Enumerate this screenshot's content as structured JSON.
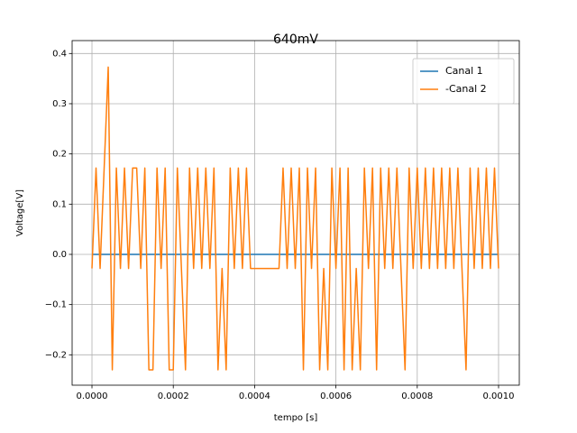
{
  "chart_data": {
    "type": "line",
    "title": "640mV",
    "xlabel": "tempo [s]",
    "ylabel": "Voltage[V]",
    "xlim": [
      -4.88e-05,
      0.001051
    ],
    "ylim": [
      -0.2605,
      0.4257
    ],
    "xticks": [
      {
        "value": 0,
        "label": "0.0000"
      },
      0.0002,
      0.0004,
      0.0006,
      0.0008,
      {
        "value": 0.001,
        "label": "0.0010"
      }
    ],
    "yticks": [
      {
        "value": -0.2,
        "label": "−0.2"
      },
      {
        "value": -0.1,
        "label": "−0.1"
      },
      {
        "value": 0,
        "label": "0.0"
      },
      0.1,
      0.2,
      0.3,
      0.4
    ],
    "grid": true,
    "legend": "upper right",
    "series": [
      {
        "name": "Canal 1",
        "color": "#1f77b4",
        "x": [
          0,
          0.001
        ],
        "values": [
          0,
          0
        ]
      },
      {
        "name": "-Canal 2",
        "color": "#ff7f0e",
        "x": [
          0,
          1e-05,
          2e-05,
          3e-05,
          4e-05,
          5e-05,
          6e-05,
          7e-05,
          8e-05,
          9e-05,
          0.0001,
          0.00011,
          0.00012,
          0.00013,
          0.00014,
          0.00015,
          0.00016,
          0.00017,
          0.00018,
          0.00019,
          0.0002,
          0.00021,
          0.00022,
          0.00023,
          0.00024,
          0.00025,
          0.00026,
          0.00027,
          0.00028,
          0.00029,
          0.0003,
          0.00031,
          0.00032,
          0.00033,
          0.00034,
          0.00035,
          0.00036,
          0.00037,
          0.00038,
          0.00039,
          0.0004,
          0.00041,
          0.00042,
          0.00043,
          0.00044,
          0.00045,
          0.00046,
          0.00047,
          0.00048,
          0.00049,
          0.0005,
          0.00051,
          0.00052,
          0.00053,
          0.00054,
          0.00055,
          0.00056,
          0.00057,
          0.00058,
          0.00059,
          0.0006,
          0.00061,
          0.00062,
          0.00063,
          0.00064,
          0.00065,
          0.00066,
          0.00067,
          0.00068,
          0.00069,
          0.0007,
          0.00071,
          0.00072,
          0.00073,
          0.00074,
          0.00075,
          0.00076,
          0.00077,
          0.00078,
          0.00079,
          0.0008,
          0.00081,
          0.00082,
          0.00083,
          0.00084,
          0.00085,
          0.00086,
          0.00087,
          0.00088,
          0.00089,
          0.0009,
          0.00091,
          0.00092,
          0.00093,
          0.00094,
          0.00095,
          0.00096,
          0.00097,
          0.00098,
          0.00099,
          0.001
        ],
        "values": [
          -0.028,
          0.172,
          -0.028,
          0.172,
          0.373,
          -0.23,
          0.172,
          -0.028,
          0.172,
          -0.028,
          0.172,
          0.172,
          -0.028,
          0.172,
          -0.23,
          -0.23,
          0.172,
          -0.028,
          0.172,
          -0.23,
          -0.23,
          0.172,
          -0.028,
          -0.23,
          0.172,
          -0.028,
          0.172,
          -0.028,
          0.172,
          -0.028,
          0.172,
          -0.23,
          -0.028,
          -0.23,
          0.172,
          -0.028,
          0.172,
          -0.028,
          0.172,
          -0.028,
          -0.028,
          -0.028,
          -0.028,
          -0.028,
          -0.028,
          -0.028,
          -0.028,
          0.172,
          -0.028,
          0.172,
          -0.028,
          0.172,
          -0.23,
          0.172,
          -0.028,
          0.172,
          -0.23,
          -0.028,
          -0.23,
          0.172,
          -0.028,
          0.172,
          -0.23,
          0.172,
          -0.23,
          -0.028,
          -0.23,
          0.172,
          -0.028,
          0.172,
          -0.23,
          0.172,
          -0.028,
          0.172,
          -0.028,
          0.172,
          -0.028,
          -0.23,
          0.172,
          -0.028,
          0.172,
          -0.028,
          0.172,
          -0.028,
          0.172,
          -0.028,
          0.172,
          -0.028,
          0.172,
          -0.028,
          0.172,
          -0.028,
          -0.23,
          0.172,
          -0.028,
          0.172,
          -0.028,
          0.172,
          -0.028,
          0.172,
          -0.028
        ]
      }
    ]
  }
}
